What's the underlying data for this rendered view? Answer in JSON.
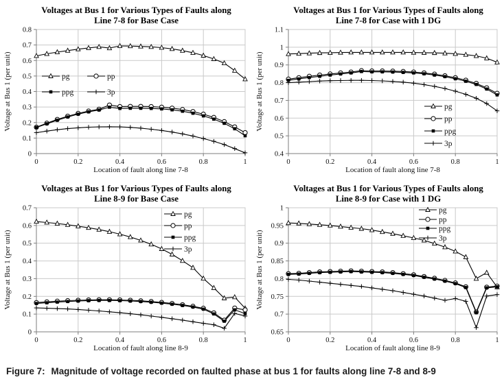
{
  "figure": {
    "caption_label": "Figure 7:",
    "caption_text": "Magnitude of voltage recorded on faulted phase at bus 1 for faults along line 7-8 and 8-9"
  },
  "colors": {
    "line": "#000000",
    "grid": "#c9c9c9",
    "axis": "#7d7d7d",
    "text": "#000000",
    "background": "#ffffff"
  },
  "chart_data": [
    {
      "id": "line-7-8-base-case",
      "type": "line",
      "title_line1": "Voltages at Bus 1 for Various Types of Faults along",
      "title_line2": "Line 7-8 for Base Case",
      "xlabel": "Location of fault along line 7-8",
      "ylabel": "Voltage at Bus 1 (per unit)",
      "x_ticks": [
        "0",
        "0.2",
        "0.4",
        "0.6",
        "0.8",
        "1"
      ],
      "y_ticks": [
        "0",
        "0.1",
        "0.2",
        "0.3",
        "0.4",
        "0.5",
        "0.6",
        "0.7",
        "0.8"
      ],
      "ylim": [
        0,
        0.8
      ],
      "grid": true,
      "legend": {
        "items": [
          "pg",
          "pp",
          "ppg",
          "3p"
        ],
        "layout": "two-column-inside-left",
        "positions": [
          [
            58,
            73
          ],
          [
            124,
            73
          ],
          [
            58,
            96
          ],
          [
            124,
            96
          ]
        ]
      },
      "x": [
        0,
        0.05,
        0.1,
        0.15,
        0.2,
        0.25,
        0.3,
        0.35,
        0.4,
        0.45,
        0.5,
        0.55,
        0.6,
        0.65,
        0.7,
        0.75,
        0.8,
        0.85,
        0.9,
        0.95,
        1
      ],
      "series": [
        {
          "name": "pg",
          "marker": "triangle-open",
          "values": [
            0.63,
            0.643,
            0.654,
            0.664,
            0.673,
            0.681,
            0.688,
            0.68,
            0.694,
            0.693,
            0.691,
            0.688,
            0.683,
            0.675,
            0.664,
            0.65,
            0.632,
            0.61,
            0.583,
            0.535,
            0.48
          ]
        },
        {
          "name": "pp",
          "marker": "circle-open",
          "values": [
            0.17,
            0.196,
            0.22,
            0.241,
            0.259,
            0.274,
            0.286,
            0.313,
            0.303,
            0.304,
            0.304,
            0.303,
            0.299,
            0.293,
            0.284,
            0.271,
            0.254,
            0.233,
            0.206,
            0.172,
            0.135
          ]
        },
        {
          "name": "ppg",
          "marker": "square-filled",
          "values": [
            0.168,
            0.192,
            0.215,
            0.236,
            0.254,
            0.269,
            0.281,
            0.299,
            0.291,
            0.292,
            0.292,
            0.291,
            0.288,
            0.282,
            0.273,
            0.26,
            0.243,
            0.222,
            0.195,
            0.16,
            0.115
          ]
        },
        {
          "name": "3p",
          "marker": "plus",
          "values": [
            0.135,
            0.145,
            0.154,
            0.161,
            0.166,
            0.17,
            0.172,
            0.173,
            0.172,
            0.169,
            0.164,
            0.157,
            0.149,
            0.139,
            0.127,
            0.113,
            0.097,
            0.079,
            0.058,
            0.032,
            0.005
          ]
        }
      ]
    },
    {
      "id": "line-7-8-with-1-dg",
      "type": "line",
      "title_line1": "Voltages at Bus 1 for Various Types of Faults along",
      "title_line2": "Line 7-8 for Case with 1 DG",
      "xlabel": "Location of fault along line 7-8",
      "ylabel": "Voltage at Bus 1 (per unit)",
      "x_ticks": [
        "0",
        "0.2",
        "0.4",
        "0.6",
        "0.8",
        "1"
      ],
      "y_ticks": [
        "0.4",
        "0.5",
        "0.6",
        "0.7",
        "0.8",
        "0.9",
        "1",
        "1.1"
      ],
      "ylim": [
        0.4,
        1.1
      ],
      "grid": true,
      "legend": {
        "items": [
          "pg",
          "pp",
          "ppg",
          "3p"
        ],
        "layout": "column-inside-right",
        "positions": [
          [
            248,
            117
          ],
          [
            248,
            135
          ],
          [
            248,
            153
          ],
          [
            248,
            171
          ]
        ]
      },
      "x": [
        0,
        0.05,
        0.1,
        0.15,
        0.2,
        0.25,
        0.3,
        0.35,
        0.4,
        0.45,
        0.5,
        0.55,
        0.6,
        0.65,
        0.7,
        0.75,
        0.8,
        0.85,
        0.9,
        0.95,
        1
      ],
      "series": [
        {
          "name": "pg",
          "marker": "triangle-open",
          "values": [
            0.962,
            0.964,
            0.966,
            0.968,
            0.969,
            0.97,
            0.971,
            0.971,
            0.971,
            0.971,
            0.971,
            0.971,
            0.97,
            0.969,
            0.968,
            0.966,
            0.963,
            0.958,
            0.951,
            0.938,
            0.915
          ]
        },
        {
          "name": "pp",
          "marker": "circle-open",
          "values": [
            0.82,
            0.828,
            0.836,
            0.843,
            0.849,
            0.855,
            0.86,
            0.868,
            0.866,
            0.866,
            0.865,
            0.863,
            0.86,
            0.855,
            0.848,
            0.839,
            0.828,
            0.814,
            0.796,
            0.771,
            0.74
          ]
        },
        {
          "name": "ppg",
          "marker": "square-filled",
          "values": [
            0.813,
            0.821,
            0.829,
            0.836,
            0.843,
            0.849,
            0.855,
            0.863,
            0.861,
            0.861,
            0.86,
            0.858,
            0.855,
            0.85,
            0.843,
            0.834,
            0.822,
            0.808,
            0.79,
            0.764,
            0.731
          ]
        },
        {
          "name": "3p",
          "marker": "plus",
          "values": [
            0.8,
            0.803,
            0.806,
            0.809,
            0.811,
            0.812,
            0.813,
            0.813,
            0.812,
            0.81,
            0.807,
            0.803,
            0.797,
            0.789,
            0.779,
            0.767,
            0.752,
            0.734,
            0.712,
            0.682,
            0.641
          ]
        }
      ]
    },
    {
      "id": "line-8-9-base-case",
      "type": "line",
      "title_line1": "Voltages at Bus 1 for Various Types of Faults along",
      "title_line2": "Line 8-9 for Base Case",
      "xlabel": "Location of fault along line 8-9",
      "ylabel": "Voltage at Bus 1 (per unit)",
      "x_ticks": [
        "0",
        "0.2",
        "0.4",
        "0.6",
        "0.8",
        "1"
      ],
      "y_ticks": [
        "0",
        "0.1",
        "0.2",
        "0.3",
        "0.4",
        "0.5",
        "0.6",
        "0.7"
      ],
      "ylim": [
        0,
        0.7
      ],
      "grid": true,
      "legend": {
        "items": [
          "pg",
          "pp",
          "ppg",
          "3p"
        ],
        "layout": "column-inside-top-right",
        "positions": [
          [
            236,
            14
          ],
          [
            236,
            31
          ],
          [
            236,
            48
          ],
          [
            236,
            65
          ]
        ]
      },
      "x": [
        0,
        0.05,
        0.1,
        0.15,
        0.2,
        0.25,
        0.3,
        0.35,
        0.4,
        0.45,
        0.5,
        0.55,
        0.6,
        0.65,
        0.7,
        0.75,
        0.8,
        0.85,
        0.9,
        0.95,
        1
      ],
      "series": [
        {
          "name": "pg",
          "marker": "triangle-open",
          "values": [
            0.622,
            0.617,
            0.611,
            0.604,
            0.596,
            0.587,
            0.577,
            0.565,
            0.551,
            0.535,
            0.516,
            0.494,
            0.468,
            0.437,
            0.401,
            0.362,
            0.301,
            0.248,
            0.19,
            0.196,
            0.133
          ]
        },
        {
          "name": "pp",
          "marker": "circle-open",
          "values": [
            0.165,
            0.169,
            0.173,
            0.176,
            0.178,
            0.18,
            0.181,
            0.181,
            0.18,
            0.178,
            0.175,
            0.171,
            0.166,
            0.16,
            0.153,
            0.144,
            0.133,
            0.107,
            0.066,
            0.134,
            0.124
          ]
        },
        {
          "name": "ppg",
          "marker": "square-filled",
          "values": [
            0.16,
            0.164,
            0.168,
            0.171,
            0.174,
            0.176,
            0.177,
            0.177,
            0.176,
            0.174,
            0.171,
            0.167,
            0.162,
            0.156,
            0.149,
            0.14,
            0.128,
            0.101,
            0.06,
            0.124,
            0.103
          ]
        },
        {
          "name": "3p",
          "marker": "plus",
          "values": [
            0.135,
            0.133,
            0.131,
            0.129,
            0.126,
            0.122,
            0.118,
            0.113,
            0.108,
            0.102,
            0.096,
            0.089,
            0.082,
            0.074,
            0.066,
            0.057,
            0.048,
            0.04,
            0.02,
            0.104,
            0.089
          ]
        }
      ]
    },
    {
      "id": "line-8-9-with-1-dg",
      "type": "line",
      "title_line1": "Voltages at Bus 1 for Various Types of Faults along",
      "title_line2": "Line 8-9 for Case with 1 DG",
      "xlabel": "Location of fault along line 8-9",
      "ylabel": "Voltage at Bus 1 (per unit)",
      "x_ticks": [
        "0",
        "0.2",
        "0.4",
        "0.6",
        "0.8",
        "1"
      ],
      "y_ticks": [
        "0.65",
        "0.7",
        "0.75",
        "0.8",
        "0.85",
        "0.9",
        "0.95",
        "1"
      ],
      "ylim": [
        0.65,
        1.0
      ],
      "grid": true,
      "legend": {
        "items": [
          "pg",
          "pp",
          "ppg",
          "3p"
        ],
        "layout": "column-inside-top-right",
        "positions": [
          [
            240,
            8
          ],
          [
            240,
            22
          ],
          [
            240,
            35
          ],
          [
            240,
            49
          ]
        ]
      },
      "x": [
        0,
        0.05,
        0.1,
        0.15,
        0.2,
        0.25,
        0.3,
        0.35,
        0.4,
        0.45,
        0.5,
        0.55,
        0.6,
        0.65,
        0.7,
        0.75,
        0.8,
        0.85,
        0.9,
        0.95,
        1
      ],
      "series": [
        {
          "name": "pg",
          "marker": "triangle-open",
          "values": [
            0.957,
            0.956,
            0.954,
            0.952,
            0.95,
            0.947,
            0.944,
            0.941,
            0.937,
            0.932,
            0.927,
            0.921,
            0.915,
            0.908,
            0.899,
            0.889,
            0.877,
            0.861,
            0.8,
            0.817,
            0.776
          ]
        },
        {
          "name": "pp",
          "marker": "circle-open",
          "values": [
            0.814,
            0.815,
            0.817,
            0.819,
            0.82,
            0.821,
            0.822,
            0.821,
            0.82,
            0.819,
            0.817,
            0.814,
            0.811,
            0.806,
            0.801,
            0.795,
            0.788,
            0.777,
            0.706,
            0.776,
            0.779
          ]
        },
        {
          "name": "ppg",
          "marker": "square-filled",
          "values": [
            0.812,
            0.813,
            0.815,
            0.817,
            0.818,
            0.819,
            0.82,
            0.819,
            0.818,
            0.817,
            0.815,
            0.812,
            0.809,
            0.804,
            0.799,
            0.793,
            0.786,
            0.775,
            0.704,
            0.774,
            0.777
          ]
        },
        {
          "name": "3p",
          "marker": "plus",
          "values": [
            0.798,
            0.796,
            0.793,
            0.79,
            0.787,
            0.784,
            0.781,
            0.778,
            0.774,
            0.77,
            0.766,
            0.761,
            0.756,
            0.751,
            0.745,
            0.739,
            0.744,
            0.736,
            0.662,
            0.751,
            0.755
          ]
        }
      ]
    }
  ]
}
